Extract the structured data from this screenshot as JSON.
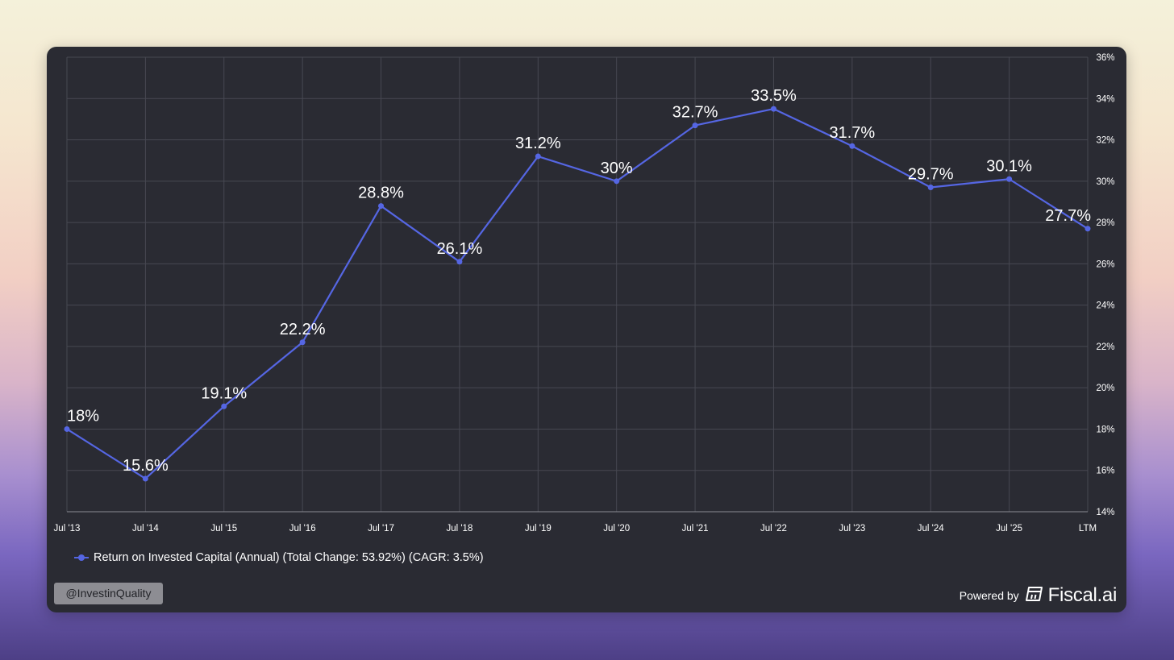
{
  "chart_data": {
    "type": "line",
    "categories": [
      "Jul '13",
      "Jul '14",
      "Jul '15",
      "Jul '16",
      "Jul '17",
      "Jul '18",
      "Jul '19",
      "Jul '20",
      "Jul '21",
      "Jul '22",
      "Jul '23",
      "Jul '24",
      "Jul '25",
      "LTM"
    ],
    "series": [
      {
        "name": "Return on Invested Capital (Annual) (Total Change: 53.92%) (CAGR: 3.5%)",
        "values": [
          18,
          15.6,
          19.1,
          22.2,
          28.8,
          26.1,
          31.2,
          30,
          32.7,
          33.5,
          31.7,
          29.7,
          30.1,
          27.7
        ],
        "labels": [
          "18%",
          "15.6%",
          "19.1%",
          "22.2%",
          "28.8%",
          "26.1%",
          "31.2%",
          "30%",
          "32.7%",
          "33.5%",
          "31.7%",
          "29.7%",
          "30.1%",
          "27.7%"
        ],
        "color": "#5566e3"
      }
    ],
    "y_ticks": [
      "14%",
      "16%",
      "18%",
      "20%",
      "22%",
      "24%",
      "26%",
      "28%",
      "30%",
      "32%",
      "34%",
      "36%"
    ],
    "ylim": [
      14,
      36
    ],
    "y_axis_side": "right",
    "grid": true,
    "legend_position": "bottom-left",
    "title": "",
    "xlabel": "",
    "ylabel": ""
  },
  "footer": {
    "handle": "@InvestinQuality",
    "powered_by": "Powered by",
    "brand": "Fiscal.ai"
  },
  "colors": {
    "card_background": "#2a2b33",
    "grid": "#474852",
    "line": "#5566e3",
    "text": "#ffffff"
  }
}
